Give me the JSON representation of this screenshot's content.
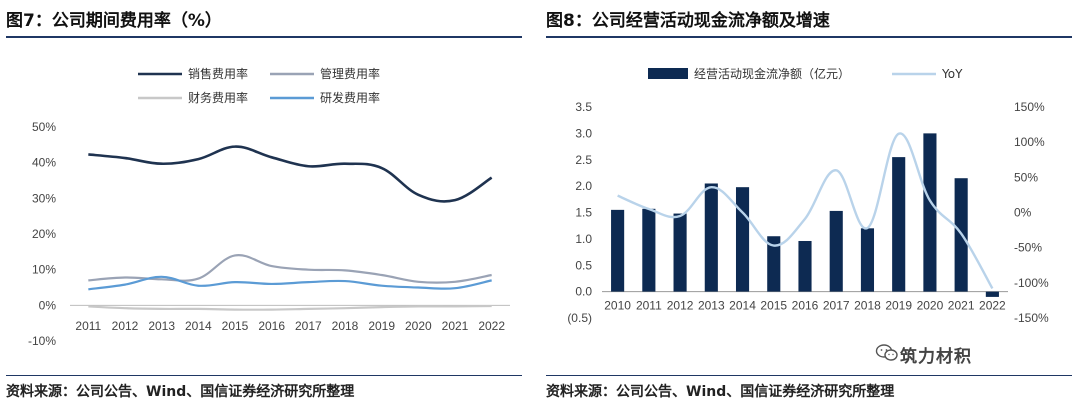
{
  "left": {
    "title": "图7：公司期间费用率（%）",
    "source": "资料来源：公司公告、Wind、国信证券经济研究所整理"
  },
  "right": {
    "title": "图8：公司经营活动现金流净额及增速",
    "source": "资料来源：公司公告、Wind、国信证券经济研究所整理"
  },
  "watermark": "筑力材积",
  "chart_data": [
    {
      "type": "line",
      "title": "公司期间费用率（%）",
      "x": [
        "2011",
        "2012",
        "2013",
        "2014",
        "2015",
        "2016",
        "2017",
        "2018",
        "2019",
        "2020",
        "2021",
        "2022"
      ],
      "ylim": [
        -10,
        50
      ],
      "yticks": [
        "-10%",
        "0%",
        "10%",
        "20%",
        "30%",
        "40%",
        "50%"
      ],
      "legend_position": "top",
      "series": [
        {
          "name": "销售费用率",
          "color": "#1f3350",
          "values": [
            42.3,
            41.3,
            39.7,
            41.0,
            44.5,
            41.5,
            39.0,
            39.7,
            38.5,
            31.0,
            29.5,
            35.8
          ]
        },
        {
          "name": "管理费用率",
          "color": "#9aa3b5",
          "values": [
            7.0,
            7.8,
            7.3,
            7.5,
            14.0,
            11.0,
            10.0,
            9.8,
            8.5,
            6.6,
            6.6,
            8.5
          ]
        },
        {
          "name": "财务费用率",
          "color": "#c8c8c8",
          "values": [
            -0.3,
            -0.8,
            -1.0,
            -1.0,
            -1.2,
            -1.2,
            -1.0,
            -0.8,
            -0.5,
            -0.3,
            -0.3,
            -0.2
          ]
        },
        {
          "name": "研发费用率",
          "color": "#5b9bd5",
          "values": [
            4.5,
            5.8,
            8.0,
            5.5,
            6.5,
            6.0,
            6.5,
            6.8,
            5.5,
            5.0,
            4.8,
            7.0
          ]
        }
      ]
    },
    {
      "type": "bar",
      "title": "公司经营活动现金流净额及增速",
      "categories": [
        "2010",
        "2011",
        "2012",
        "2013",
        "2014",
        "2015",
        "2016",
        "2017",
        "2018",
        "2019",
        "2020",
        "2021",
        "2022"
      ],
      "ylim": [
        -0.5,
        3.5
      ],
      "y2lim": [
        -150,
        150
      ],
      "yticks": [
        "(0.5)",
        "0.0",
        "0.5",
        "1.0",
        "1.5",
        "2.0",
        "2.5",
        "3.0",
        "3.5"
      ],
      "y2ticks": [
        "-150%",
        "-100%",
        "-50%",
        "0%",
        "50%",
        "100%",
        "150%"
      ],
      "legend_position": "top",
      "series": [
        {
          "name": "经营活动现金流净额（亿元）",
          "kind": "bar",
          "axis": "left",
          "color": "#0d2a52",
          "values": [
            1.55,
            1.57,
            1.48,
            2.05,
            1.98,
            1.05,
            0.96,
            1.53,
            1.2,
            2.55,
            3.0,
            2.15,
            -0.1
          ]
        },
        {
          "name": "YoY",
          "kind": "line",
          "axis": "right",
          "color": "#b9d3ea",
          "values": [
            24,
            5,
            -5,
            36,
            0,
            -47,
            -9,
            60,
            -22,
            112,
            17,
            -30,
            -108
          ]
        }
      ]
    }
  ]
}
